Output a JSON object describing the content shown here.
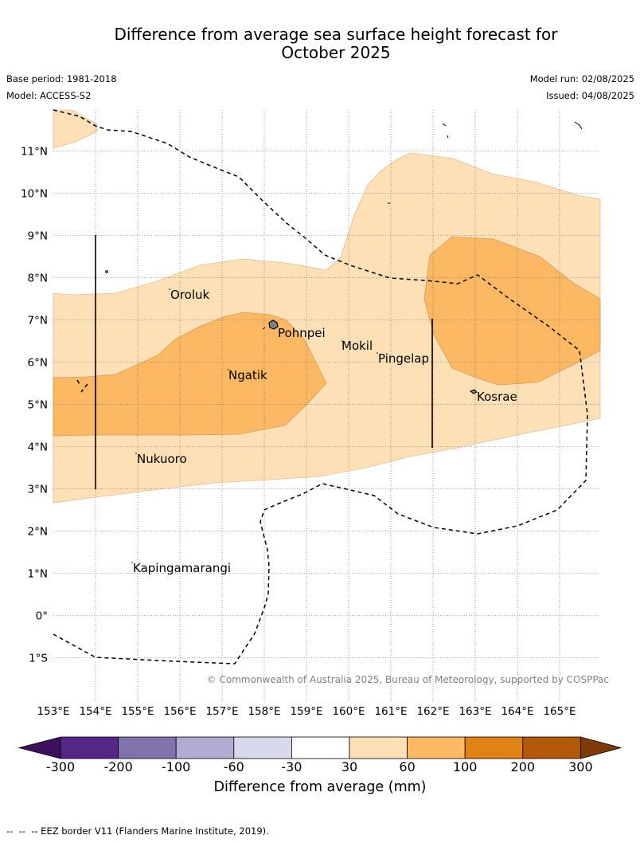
{
  "title_line1": "Difference from average sea surface height forecast for",
  "title_line2": "October 2025",
  "base_period": "Base period: 1981-2018",
  "model": "Model: ACCESS-S2",
  "model_run": "Model run: 02/08/2025",
  "issued": "Issued: 04/08/2025",
  "copyright": "© Commonwealth of Australia 2025, Bureau of Meteorology, supported by COSPPac",
  "lon_labels": [
    "153°E",
    "154°E",
    "155°E",
    "156°E",
    "157°E",
    "158°E",
    "159°E",
    "160°E",
    "161°E",
    "162°E",
    "163°E",
    "164°E",
    "165°E"
  ],
  "lat_labels": [
    "11°N",
    "10°N",
    "9°N",
    "8°N",
    "7°N",
    "6°N",
    "5°N",
    "4°N",
    "3°N",
    "2°N",
    "1°N",
    "0°",
    "1°S"
  ],
  "places": {
    "oroluk": "Oroluk",
    "pohnpei": "Pohnpei",
    "mokil": "Mokil",
    "pingelap": "Pingelap",
    "ngatik": "Ngatik",
    "kosrae": "Kosrae",
    "nukuoro": "Nukuoro",
    "kapingamarangi": "Kapingamarangi"
  },
  "colorbar": {
    "title": "Difference from average (mm)",
    "ticks": [
      "-300",
      "-200",
      "-100",
      "-60",
      "-30",
      "30",
      "60",
      "100",
      "200",
      "300"
    ],
    "colors": {
      "lt_-300": "#3d0f5c",
      "-300_-200": "#542788",
      "-200_-100": "#8073ac",
      "-100_-60": "#b2abd2",
      "-60_-30": "#d8daeb",
      "-30_30": "#ffffff",
      "30_60": "#fee0b6",
      "60_100": "#fdb863",
      "100_200": "#e08214",
      "200_300": "#b35806",
      "gt_300": "#7f3b08"
    }
  },
  "legend_text": "--  --  -- EEZ border V11 (Flanders Marine Institute, 2019)."
}
